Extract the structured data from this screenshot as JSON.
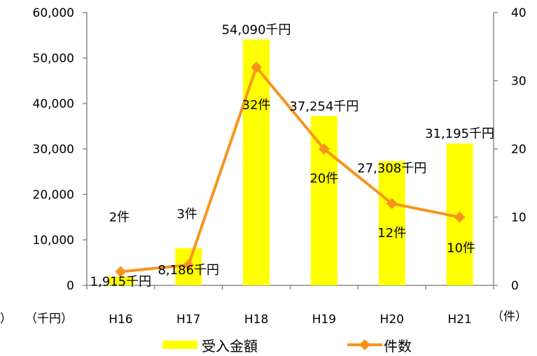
{
  "chart_data": {
    "type": "bar",
    "categories": [
      "H16",
      "H17",
      "H18",
      "H19",
      "H20",
      "H21"
    ],
    "series": [
      {
        "name": "受入金額",
        "type": "bar",
        "axis": "left",
        "color": "#FFFF00",
        "values": [
          1915,
          8186,
          54090,
          37254,
          27308,
          31195
        ],
        "labels": [
          "1,915千円",
          "8,186千円",
          "54,090千円",
          "37,254千円",
          "27,308千円",
          "31,195千円"
        ]
      },
      {
        "name": "件数",
        "type": "line",
        "axis": "right",
        "color": "#F7941D",
        "values": [
          2,
          3,
          32,
          20,
          12,
          10
        ],
        "labels": [
          "2件",
          "3件",
          "32件",
          "20件",
          "12件",
          "10件"
        ]
      }
    ],
    "left_axis": {
      "unit_label": "（千円）",
      "ylim": [
        0,
        60000
      ],
      "ticks": [
        "0",
        "10,000",
        "20,000",
        "30,000",
        "40,000",
        "50,000",
        "60,000"
      ]
    },
    "right_axis": {
      "unit_label": "（件）",
      "ylim": [
        0,
        40
      ],
      "ticks": [
        "0",
        "10",
        "20",
        "30",
        "40"
      ]
    },
    "left_edge_text": "）",
    "legend_position": "bottom",
    "grid": false
  }
}
